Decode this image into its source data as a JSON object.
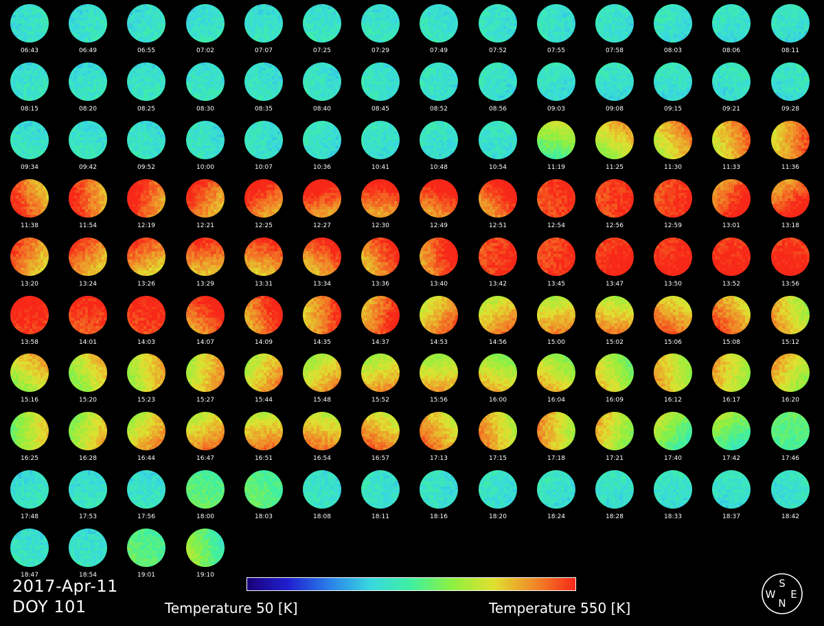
{
  "date": "2017-Apr-11",
  "doy": "DOY 101",
  "colorbar": {
    "min_label": "Temperature 50 [K]",
    "max_label": "Temperature 550 [K]",
    "min_value": 50,
    "max_value": 550,
    "unit": "K",
    "stops": [
      "#1a007a",
      "#2020d0",
      "#2a7fe8",
      "#38d8e0",
      "#40f0a0",
      "#8ef040",
      "#e0e030",
      "#f08a28",
      "#f82818"
    ]
  },
  "compass": {
    "top": "S",
    "left": "W",
    "right": "E",
    "bottom": "N"
  },
  "colors": {
    "cool": "#40e8a0",
    "warm": "#e8e838",
    "hot": "#f82a12"
  },
  "rows": [
    [
      "06:43",
      "06:49",
      "06:55",
      "07:02",
      "07:07",
      "07:25",
      "07:29",
      "07:49",
      "07:52",
      "07:55",
      "07:58",
      "08:03",
      "08:06",
      "08:11"
    ],
    [
      "08:15",
      "08:20",
      "08:25",
      "08:30",
      "08:35",
      "08:40",
      "08:45",
      "08:52",
      "08:56",
      "09:03",
      "09:08",
      "09:15",
      "09:21",
      "09:28"
    ],
    [
      "09:34",
      "09:42",
      "09:52",
      "10:00",
      "10:07",
      "10:36",
      "10:41",
      "10:48",
      "10:54",
      "11:19",
      "11:25",
      "11:30",
      "11:33",
      "11:36"
    ],
    [
      "11:38",
      "11:54",
      "12:19",
      "12:21",
      "12:25",
      "12:27",
      "12:30",
      "12:49",
      "12:51",
      "12:54",
      "12:56",
      "12:59",
      "13:01",
      "13:18"
    ],
    [
      "13:20",
      "13:24",
      "13:26",
      "13:29",
      "13:31",
      "13:34",
      "13:36",
      "13:40",
      "13:42",
      "13:45",
      "13:47",
      "13:50",
      "13:52",
      "13:56"
    ],
    [
      "13:58",
      "14:01",
      "14:03",
      "14:07",
      "14:09",
      "14:35",
      "14:37",
      "14:53",
      "14:56",
      "15:00",
      "15:02",
      "15:06",
      "15:08",
      "15:12"
    ],
    [
      "15:16",
      "15:20",
      "15:23",
      "15:27",
      "15:44",
      "15:48",
      "15:52",
      "15:56",
      "16:00",
      "16:04",
      "16:09",
      "16:12",
      "16:17",
      "16:20"
    ],
    [
      "16:25",
      "16:28",
      "16:44",
      "16:47",
      "16:51",
      "16:54",
      "16:57",
      "17:13",
      "17:15",
      "17:18",
      "17:21",
      "17:40",
      "17:42",
      "17:46"
    ],
    [
      "17:48",
      "17:53",
      "17:56",
      "18:00",
      "18:03",
      "18:08",
      "18:11",
      "18:16",
      "18:20",
      "18:24",
      "18:28",
      "18:33",
      "18:37",
      "18:42"
    ],
    [
      "18:47",
      "18:54",
      "19:01",
      "19:10"
    ]
  ],
  "heat": [
    [
      0.05,
      0.05,
      0.05,
      0.05,
      0.05,
      0.05,
      0.1,
      0.15,
      0.15,
      0.1,
      0.1,
      0.1,
      0.1,
      0.1
    ],
    [
      0.1,
      0.05,
      0.05,
      0.05,
      0.05,
      0.05,
      0.05,
      0.1,
      0.1,
      0.05,
      0.05,
      0.05,
      0.05,
      0.05
    ],
    [
      0.05,
      0.1,
      0.1,
      0.05,
      0.05,
      0.05,
      0.05,
      0.1,
      0.1,
      0.35,
      0.55,
      0.65,
      0.7,
      0.75
    ],
    [
      0.82,
      0.85,
      0.9,
      0.85,
      0.9,
      0.92,
      0.88,
      0.92,
      0.92,
      0.95,
      0.95,
      0.95,
      0.92,
      0.9
    ],
    [
      0.78,
      0.8,
      0.78,
      0.82,
      0.82,
      0.85,
      0.85,
      0.9,
      0.95,
      0.95,
      1.0,
      1.0,
      1.0,
      1.0
    ],
    [
      1.0,
      0.95,
      0.98,
      0.92,
      0.88,
      0.8,
      0.85,
      0.7,
      0.65,
      0.62,
      0.62,
      0.72,
      0.75,
      0.58
    ],
    [
      0.55,
      0.5,
      0.55,
      0.6,
      0.62,
      0.58,
      0.58,
      0.55,
      0.5,
      0.5,
      0.45,
      0.55,
      0.55,
      0.55
    ],
    [
      0.45,
      0.5,
      0.6,
      0.65,
      0.65,
      0.65,
      0.68,
      0.68,
      0.62,
      0.6,
      0.5,
      0.3,
      0.25,
      0.2
    ],
    [
      0.15,
      0.15,
      0.15,
      0.2,
      0.2,
      0.15,
      0.15,
      0.15,
      0.15,
      0.15,
      0.15,
      0.15,
      0.1,
      0.1
    ],
    [
      0.15,
      0.15,
      0.2,
      0.25
    ]
  ]
}
